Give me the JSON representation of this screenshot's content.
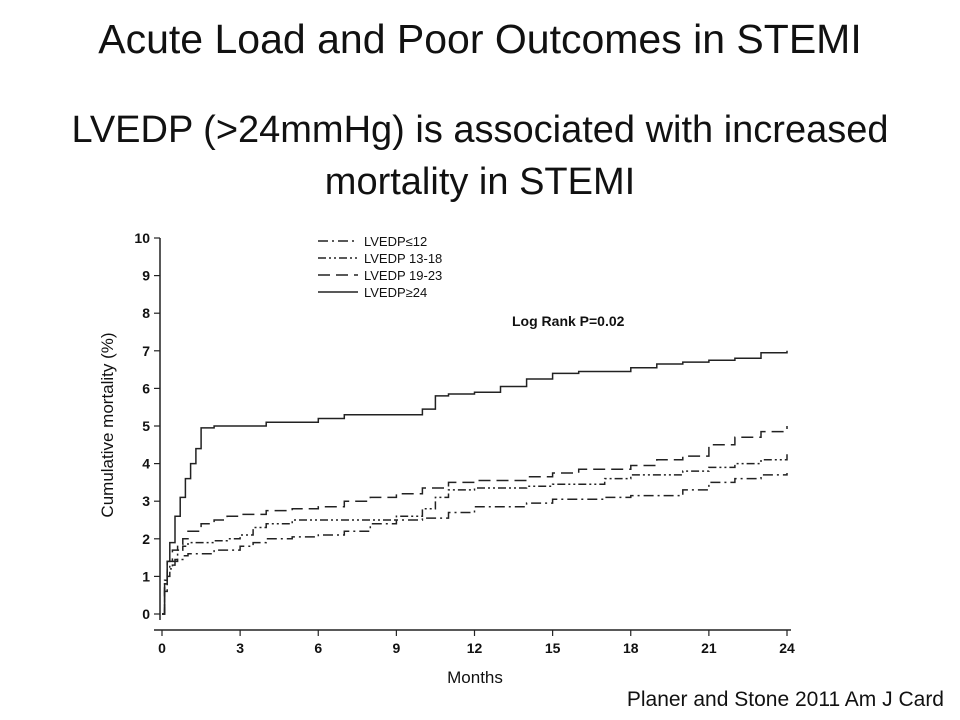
{
  "slide": {
    "title": "Acute Load and Poor Outcomes in STEMI",
    "subtitle_line1": "LVEDP (>24mmHg) is associated with increased",
    "subtitle_line2": "mortality in STEMI",
    "citation": "Planer and Stone 2011 Am J Card"
  },
  "chart_data": {
    "type": "line",
    "xlabel": "Months",
    "ylabel": "Cumulative mortality (%)",
    "xlim": [
      0,
      24
    ],
    "ylim": [
      0,
      10
    ],
    "xticks": [
      0,
      3,
      6,
      9,
      12,
      15,
      18,
      21,
      24
    ],
    "yticks": [
      0,
      1,
      2,
      3,
      4,
      5,
      6,
      7,
      8,
      9,
      10
    ],
    "grid": false,
    "legend_position": "top-left",
    "annotation": "Log Rank P=0.02",
    "series": [
      {
        "name": "LVEDP≤12",
        "dash": "dash-dot",
        "points": [
          [
            0,
            0
          ],
          [
            0.1,
            0.6
          ],
          [
            0.2,
            1.0
          ],
          [
            0.3,
            1.3
          ],
          [
            0.5,
            1.45
          ],
          [
            0.8,
            1.55
          ],
          [
            1.0,
            1.6
          ],
          [
            1.5,
            1.6
          ],
          [
            2.0,
            1.7
          ],
          [
            3.0,
            1.8
          ],
          [
            3.5,
            1.9
          ],
          [
            4.0,
            2.0
          ],
          [
            5.0,
            2.05
          ],
          [
            6.0,
            2.1
          ],
          [
            7.0,
            2.2
          ],
          [
            8.0,
            2.4
          ],
          [
            9.0,
            2.5
          ],
          [
            10.0,
            2.55
          ],
          [
            11.0,
            2.7
          ],
          [
            12.0,
            2.85
          ],
          [
            14.0,
            2.95
          ],
          [
            15.0,
            3.05
          ],
          [
            17.0,
            3.1
          ],
          [
            18.0,
            3.15
          ],
          [
            20.0,
            3.3
          ],
          [
            21.0,
            3.5
          ],
          [
            22.0,
            3.6
          ],
          [
            23.0,
            3.7
          ],
          [
            24.0,
            3.75
          ]
        ]
      },
      {
        "name": "LVEDP 13-18",
        "dash": "dash-dot-dot",
        "points": [
          [
            0,
            0
          ],
          [
            0.1,
            0.8
          ],
          [
            0.2,
            1.2
          ],
          [
            0.4,
            1.4
          ],
          [
            0.6,
            1.7
          ],
          [
            0.8,
            1.8
          ],
          [
            1.0,
            1.9
          ],
          [
            2.0,
            1.95
          ],
          [
            2.5,
            2.0
          ],
          [
            3.0,
            2.1
          ],
          [
            3.5,
            2.3
          ],
          [
            4.0,
            2.4
          ],
          [
            5.0,
            2.5
          ],
          [
            8.0,
            2.5
          ],
          [
            9.0,
            2.6
          ],
          [
            10.0,
            2.8
          ],
          [
            10.5,
            3.1
          ],
          [
            11.0,
            3.3
          ],
          [
            12.0,
            3.35
          ],
          [
            14.0,
            3.4
          ],
          [
            15.0,
            3.45
          ],
          [
            17.0,
            3.6
          ],
          [
            18.0,
            3.7
          ],
          [
            20.0,
            3.8
          ],
          [
            21.0,
            3.9
          ],
          [
            22.0,
            4.0
          ],
          [
            23.0,
            4.1
          ],
          [
            24.0,
            4.25
          ]
        ]
      },
      {
        "name": "LVEDP 19-23",
        "dash": "long-dash",
        "points": [
          [
            0,
            0
          ],
          [
            0.1,
            0.9
          ],
          [
            0.2,
            1.4
          ],
          [
            0.4,
            1.7
          ],
          [
            0.6,
            1.85
          ],
          [
            0.8,
            2.0
          ],
          [
            1.0,
            2.2
          ],
          [
            1.5,
            2.4
          ],
          [
            2.0,
            2.5
          ],
          [
            2.5,
            2.6
          ],
          [
            3.0,
            2.65
          ],
          [
            4.0,
            2.75
          ],
          [
            5.0,
            2.8
          ],
          [
            6.0,
            2.85
          ],
          [
            7.0,
            3.0
          ],
          [
            8.0,
            3.1
          ],
          [
            9.0,
            3.2
          ],
          [
            10.0,
            3.35
          ],
          [
            11.0,
            3.5
          ],
          [
            12.0,
            3.55
          ],
          [
            14.0,
            3.65
          ],
          [
            15.0,
            3.75
          ],
          [
            16.0,
            3.85
          ],
          [
            18.0,
            3.95
          ],
          [
            19.0,
            4.1
          ],
          [
            20.0,
            4.2
          ],
          [
            21.0,
            4.5
          ],
          [
            22.0,
            4.7
          ],
          [
            23.0,
            4.85
          ],
          [
            24.0,
            5.0
          ]
        ]
      },
      {
        "name": "LVEDP≥24",
        "dash": "solid",
        "points": [
          [
            0,
            0
          ],
          [
            0.1,
            0.8
          ],
          [
            0.2,
            1.4
          ],
          [
            0.3,
            1.9
          ],
          [
            0.5,
            2.6
          ],
          [
            0.7,
            3.1
          ],
          [
            0.9,
            3.6
          ],
          [
            1.1,
            4.0
          ],
          [
            1.3,
            4.4
          ],
          [
            1.5,
            4.95
          ],
          [
            2.0,
            5.0
          ],
          [
            4.0,
            5.1
          ],
          [
            6.0,
            5.2
          ],
          [
            7.0,
            5.3
          ],
          [
            8.0,
            5.3
          ],
          [
            9.0,
            5.3
          ],
          [
            10.0,
            5.45
          ],
          [
            10.5,
            5.8
          ],
          [
            11.0,
            5.85
          ],
          [
            12.0,
            5.9
          ],
          [
            13.0,
            6.05
          ],
          [
            14.0,
            6.25
          ],
          [
            15.0,
            6.4
          ],
          [
            16.0,
            6.45
          ],
          [
            18.0,
            6.55
          ],
          [
            19.0,
            6.65
          ],
          [
            20.0,
            6.7
          ],
          [
            21.0,
            6.75
          ],
          [
            22.0,
            6.8
          ],
          [
            23.0,
            6.95
          ],
          [
            24.0,
            7.0
          ]
        ]
      }
    ]
  }
}
